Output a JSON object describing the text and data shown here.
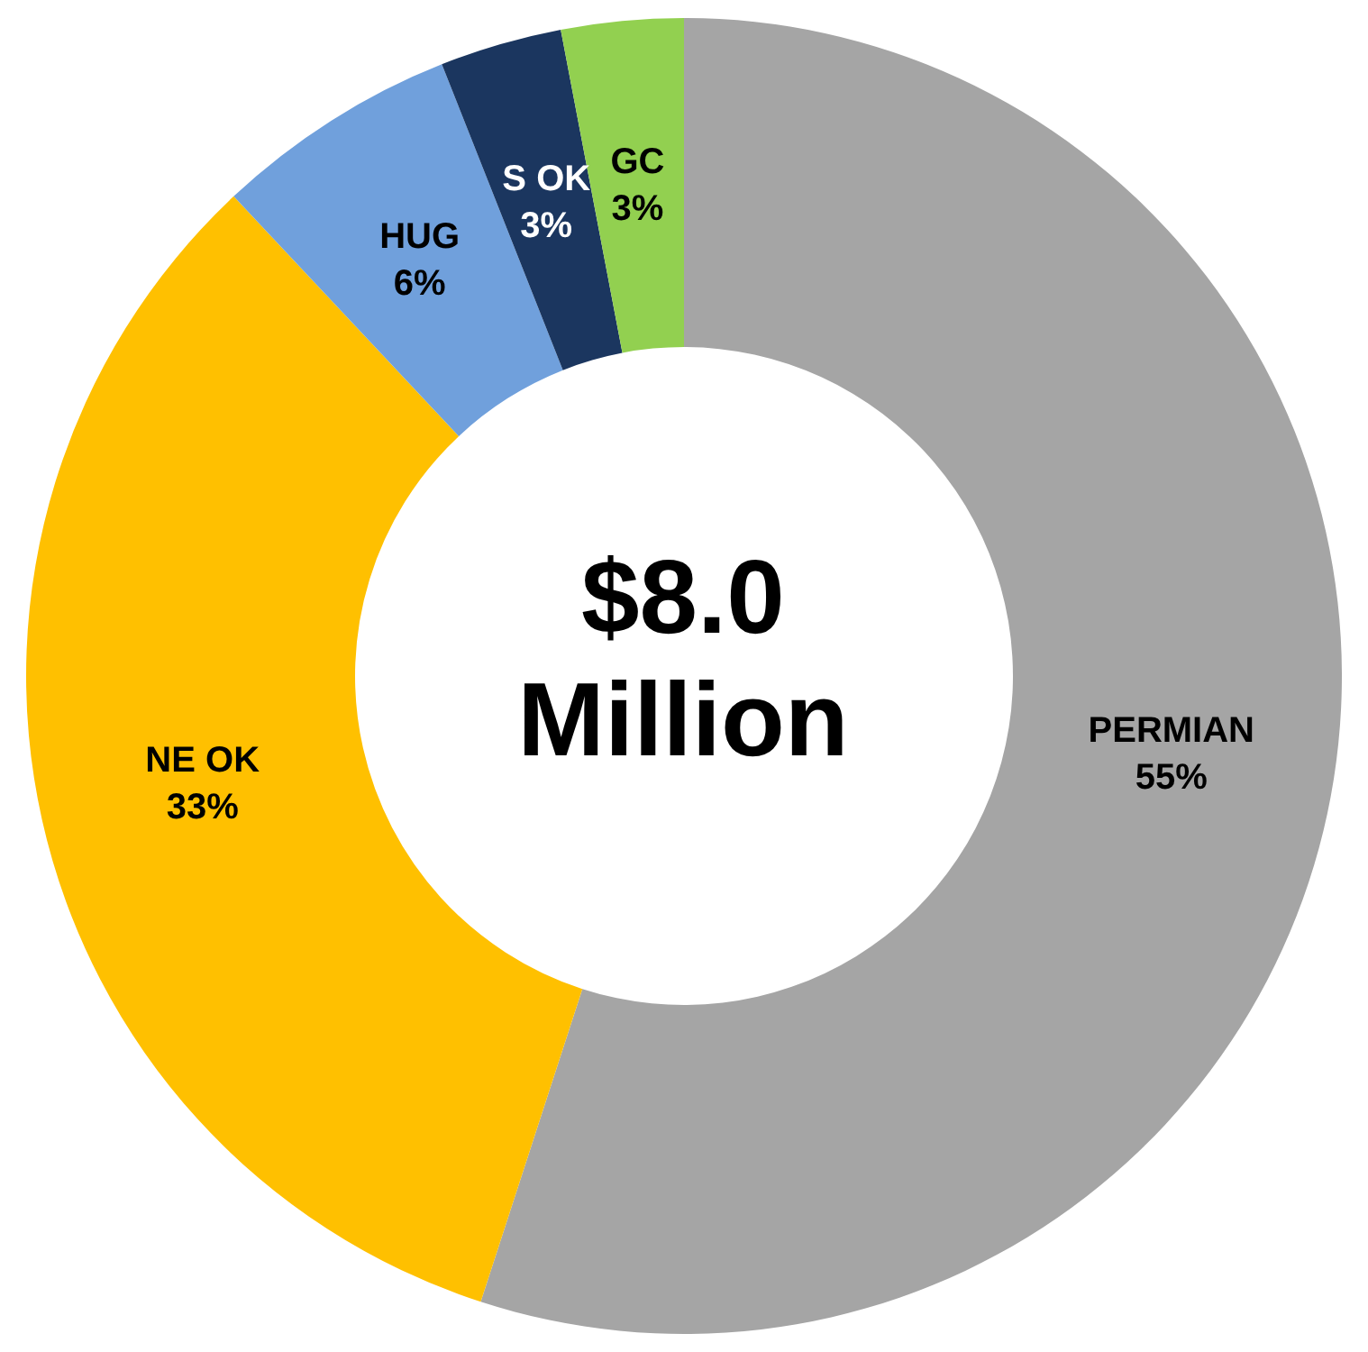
{
  "chart_data": {
    "type": "donut",
    "categories": [
      "PERMIAN",
      "NE OK",
      "HUG",
      "S OK",
      "GC"
    ],
    "values": [
      55,
      33,
      6,
      3,
      3
    ],
    "value_labels": [
      "55%",
      "33%",
      "6%",
      "3%",
      "3%"
    ],
    "colors": [
      "#a5a5a5",
      "#ffc000",
      "#70a0dc",
      "#1b365f",
      "#92d050"
    ],
    "annotations": [
      "$8.0 Million"
    ],
    "legend": false
  }
}
